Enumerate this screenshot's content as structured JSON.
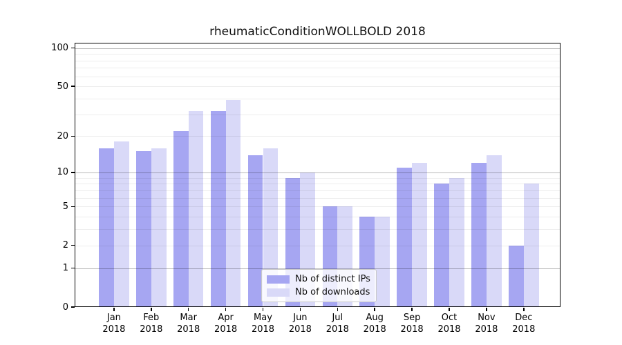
{
  "colors": {
    "distinct_ips": "#a6a6f2",
    "downloads": "#d9d9f8",
    "minor_grid": "rgba(0,0,0,0.07)",
    "major_grid": "rgba(0,0,0,0.28)",
    "axis": "#000000",
    "legend_border": "#c9c9c9",
    "background": "#ffffff"
  },
  "chart_data": {
    "type": "bar",
    "title": "rheumaticConditionWOLLBOLD 2018",
    "categories": [
      "Jan",
      "Feb",
      "Mar",
      "Apr",
      "May",
      "Jun",
      "Jul",
      "Aug",
      "Sep",
      "Oct",
      "Nov",
      "Dec"
    ],
    "x_tick_second_line": "2018",
    "series": [
      {
        "name": "Nb of distinct IPs",
        "color": "#a6a6f2",
        "values": [
          16,
          15,
          22,
          32,
          14,
          9,
          5,
          4,
          11,
          8,
          12,
          2
        ]
      },
      {
        "name": "Nb of downloads",
        "color": "#d9d9f8",
        "values": [
          18,
          16,
          32,
          39,
          16,
          10,
          5,
          4,
          12,
          9,
          14,
          8
        ]
      }
    ],
    "yscale": "log10(value+1)",
    "ylim": [
      0,
      109
    ],
    "yticks": [
      100,
      50,
      20,
      10,
      5,
      2,
      1,
      0
    ],
    "major_gridlines": [
      1,
      10,
      100
    ],
    "minor_gridlines": [
      2,
      3,
      4,
      5,
      6,
      7,
      8,
      9,
      20,
      30,
      40,
      50,
      60,
      70,
      80,
      90
    ],
    "grid": "horizontal",
    "legend_position": "lower center",
    "xlabel": "",
    "ylabel": ""
  }
}
